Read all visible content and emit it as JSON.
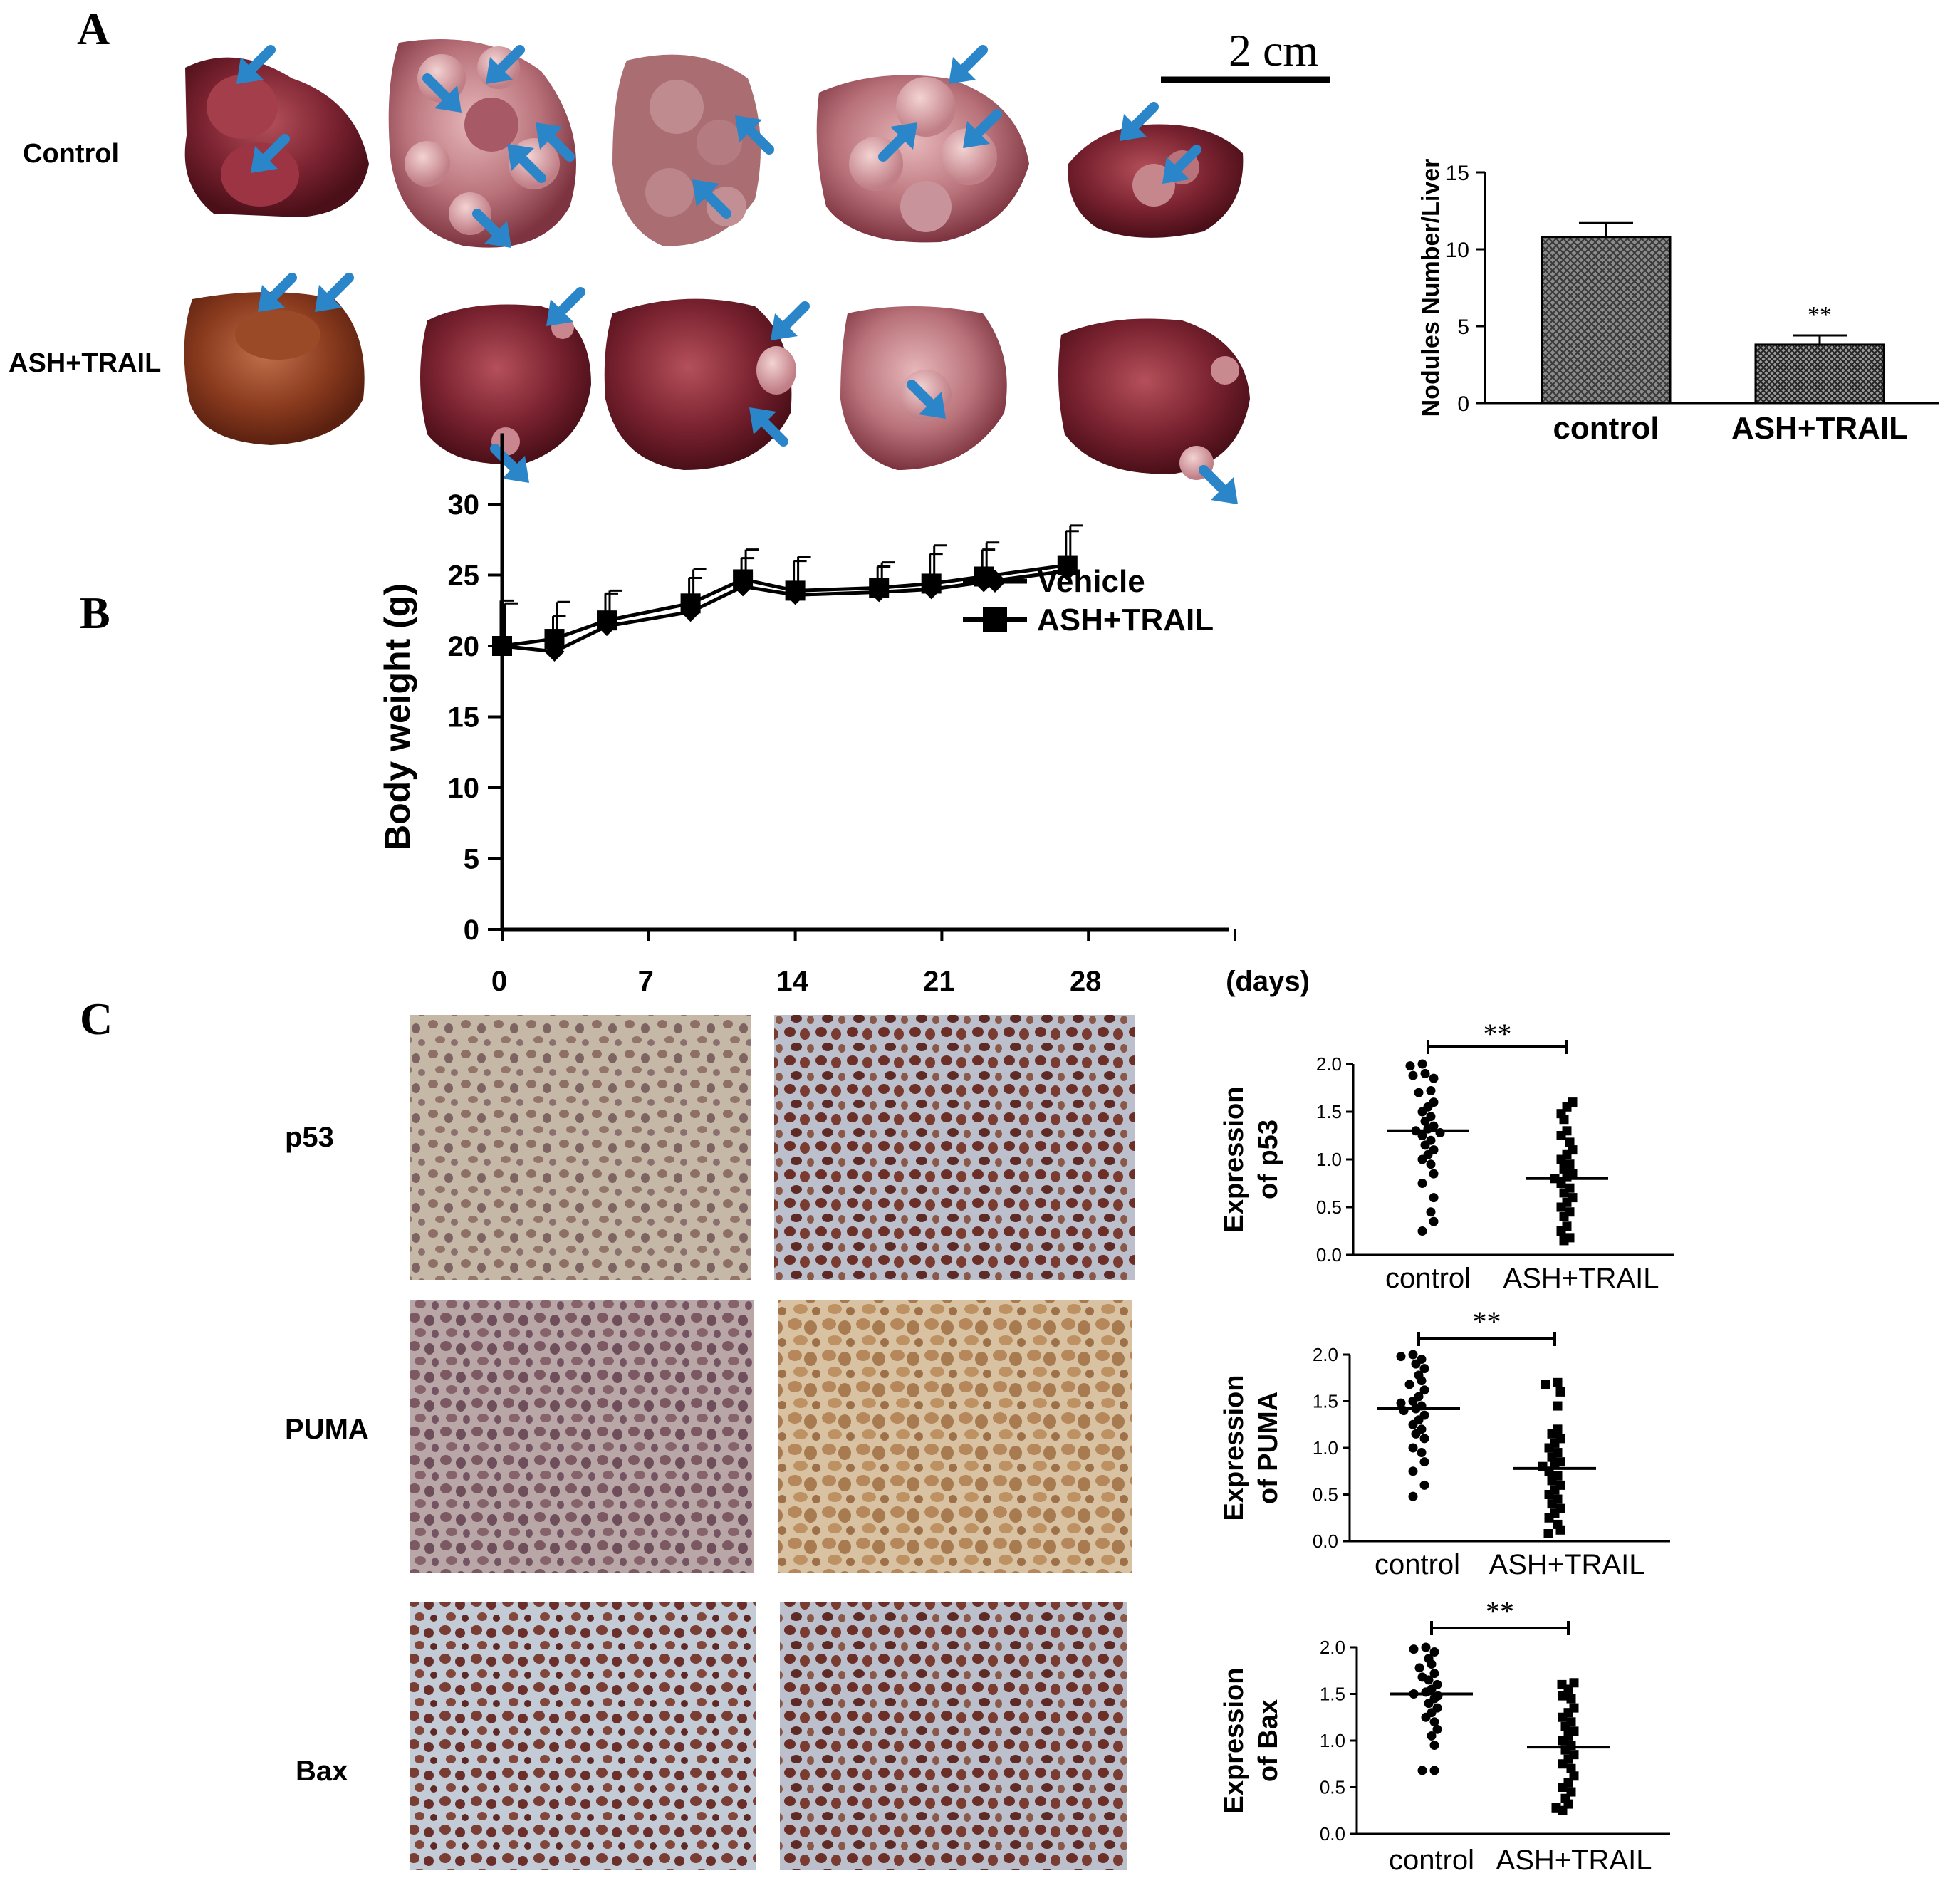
{
  "panels": {
    "A": {
      "letter": "A",
      "scale_bar_label": "2 cm",
      "row_labels": [
        "Control",
        "ASH+TRAIL"
      ]
    },
    "B": {
      "letter": "B"
    },
    "C": {
      "letter": "C",
      "row_labels": [
        "p53",
        "PUMA",
        "Bax"
      ]
    }
  },
  "colors": {
    "arrow": "#2a86c8",
    "liver_dark": "#6e1b24",
    "liver_mid": "#9b3a44",
    "liver_light": "#c98a8f",
    "liver_brown": "#8a3b1e",
    "ihc_bg_blue": "#c5c9d6",
    "ihc_brown": "#a87a4f",
    "ihc_nucleus": "#6b3a36"
  },
  "chart_data": [
    {
      "id": "nodules",
      "type": "bar",
      "categories": [
        "control",
        "ASH+TRAIL"
      ],
      "values": [
        10.8,
        3.8
      ],
      "errors": [
        0.9,
        0.6
      ],
      "significance": "**",
      "ylabel": "Nodules Number/Liver",
      "ylim": [
        0,
        15
      ],
      "yticks": [
        0,
        5,
        10,
        15
      ],
      "bar_fill": "crosshatch"
    },
    {
      "id": "body_weight",
      "type": "line",
      "ylabel": "Body weight (g)",
      "xlabel": "(days)",
      "xlim": [
        0,
        35
      ],
      "ylim": [
        0,
        35
      ],
      "xticks": [
        0,
        7,
        14,
        21,
        28
      ],
      "yticks": [
        0,
        5,
        10,
        15,
        20,
        25,
        30
      ],
      "x": [
        0,
        2.5,
        5,
        9,
        11.5,
        14,
        18,
        20.5,
        23,
        27
      ],
      "legend_position": "top-right",
      "series": [
        {
          "name": "Vehicle",
          "marker": "diamond",
          "values": [
            20,
            19.6,
            21.4,
            22.4,
            24.2,
            23.6,
            23.8,
            24,
            24.5,
            25.3
          ],
          "errors": [
            3.2,
            2.5,
            2.3,
            2.4,
            2.0,
            2.4,
            1.8,
            2.5,
            2.3,
            2.8
          ]
        },
        {
          "name": "ASH+TRAIL",
          "marker": "square",
          "values": [
            20,
            20.5,
            21.8,
            23,
            24.7,
            23.9,
            24.1,
            24.4,
            24.9,
            25.7
          ],
          "errors": [
            3.0,
            2.6,
            2.1,
            2.4,
            2.1,
            2.4,
            1.8,
            2.7,
            2.4,
            2.8
          ]
        }
      ]
    },
    {
      "id": "p53",
      "type": "scatter",
      "ylabel": "Expression of p53",
      "categories": [
        "control",
        "ASH+TRAIL"
      ],
      "ylim": [
        0,
        2.0
      ],
      "yticks": [
        "0.0",
        "0.5",
        "1.0",
        "1.5",
        "2.0"
      ],
      "significance": "**",
      "series": [
        {
          "name": "control",
          "marker": "circle",
          "mean": 1.3,
          "values": [
            2.0,
            1.98,
            1.9,
            1.88,
            1.85,
            1.72,
            1.7,
            1.6,
            1.55,
            1.5,
            1.45,
            1.4,
            1.35,
            1.32,
            1.3,
            1.28,
            1.25,
            1.2,
            1.15,
            1.1,
            1.05,
            1.0,
            0.95,
            0.85,
            0.75,
            0.6,
            0.45,
            0.35,
            0.25
          ]
        },
        {
          "name": "ASH+TRAIL",
          "marker": "square",
          "mean": 0.8,
          "values": [
            1.6,
            1.55,
            1.48,
            1.42,
            1.3,
            1.25,
            1.18,
            1.1,
            1.05,
            1.0,
            0.95,
            0.9,
            0.85,
            0.82,
            0.8,
            0.75,
            0.7,
            0.65,
            0.6,
            0.55,
            0.5,
            0.45,
            0.4,
            0.3,
            0.25,
            0.18,
            0.15
          ]
        }
      ]
    },
    {
      "id": "puma",
      "type": "scatter",
      "ylabel": "Expression of PUMA",
      "categories": [
        "control",
        "ASH+TRAIL"
      ],
      "ylim": [
        0,
        2.0
      ],
      "yticks": [
        "0.0",
        "0.5",
        "1.0",
        "1.5",
        "2.0"
      ],
      "significance": "**",
      "series": [
        {
          "name": "control",
          "marker": "circle",
          "mean": 1.42,
          "values": [
            2.0,
            1.98,
            1.95,
            1.9,
            1.85,
            1.78,
            1.72,
            1.68,
            1.62,
            1.55,
            1.5,
            1.48,
            1.45,
            1.42,
            1.4,
            1.35,
            1.3,
            1.25,
            1.2,
            1.15,
            1.1,
            1.0,
            0.95,
            0.85,
            0.75,
            0.6,
            0.48
          ]
        },
        {
          "name": "ASH+TRAIL",
          "marker": "square",
          "mean": 0.78,
          "values": [
            1.7,
            1.68,
            1.6,
            1.45,
            1.2,
            1.15,
            1.1,
            1.05,
            1.0,
            0.95,
            0.9,
            0.85,
            0.82,
            0.8,
            0.75,
            0.7,
            0.65,
            0.6,
            0.55,
            0.5,
            0.45,
            0.4,
            0.35,
            0.3,
            0.25,
            0.18,
            0.12,
            0.08
          ]
        }
      ]
    },
    {
      "id": "bax",
      "type": "scatter",
      "ylabel": "Expression of Bax",
      "categories": [
        "control",
        "ASH+TRAIL"
      ],
      "ylim": [
        0,
        2.0
      ],
      "yticks": [
        "0.0",
        "0.5",
        "1.0",
        "1.5",
        "2.0"
      ],
      "significance": "**",
      "series": [
        {
          "name": "control",
          "marker": "circle",
          "mean": 1.5,
          "values": [
            2.0,
            1.98,
            1.95,
            1.88,
            1.82,
            1.78,
            1.72,
            1.68,
            1.65,
            1.6,
            1.55,
            1.52,
            1.5,
            1.48,
            1.45,
            1.4,
            1.35,
            1.3,
            1.25,
            1.2,
            1.12,
            1.05,
            0.95,
            0.68,
            0.68
          ]
        },
        {
          "name": "ASH+TRAIL",
          "marker": "square",
          "mean": 0.93,
          "values": [
            1.62,
            1.6,
            1.55,
            1.48,
            1.45,
            1.35,
            1.3,
            1.25,
            1.2,
            1.15,
            1.1,
            1.05,
            1.0,
            0.95,
            0.9,
            0.85,
            0.8,
            0.75,
            0.7,
            0.62,
            0.55,
            0.5,
            0.45,
            0.38,
            0.32,
            0.28,
            0.25
          ]
        }
      ]
    }
  ]
}
